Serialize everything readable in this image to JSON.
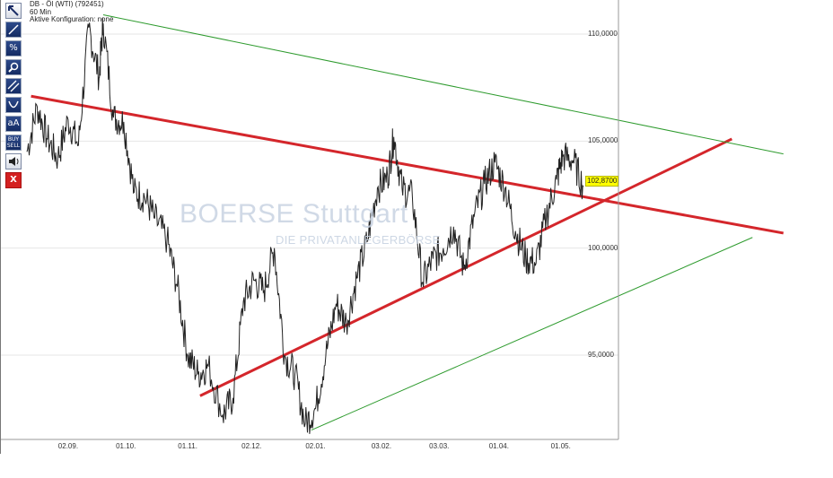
{
  "info": {
    "instrument": "DB - Öl (WTI) (792451)",
    "interval": "60 Min",
    "config": "Aktive Konfiguration: none"
  },
  "toolbar": {
    "tools": [
      {
        "name": "pointer-tool",
        "icon": "arrow-pointer-icon",
        "label": ""
      },
      {
        "name": "line-tool",
        "icon": "trendline-icon",
        "label": ""
      },
      {
        "name": "percent-tool",
        "icon": "percent-icon",
        "label": "%"
      },
      {
        "name": "zoom-tool",
        "icon": "magnifier-icon",
        "label": ""
      },
      {
        "name": "channel-tool",
        "icon": "parallel-lines-icon",
        "label": ""
      },
      {
        "name": "arc-tool",
        "icon": "arc-icon",
        "label": ""
      },
      {
        "name": "text-tool",
        "icon": "text-icon",
        "label": "aA"
      },
      {
        "name": "buysell-tool",
        "icon": "buy-sell-icon",
        "label_top": "BUY",
        "label_bottom": "SELL"
      },
      {
        "name": "sound-tool",
        "icon": "speaker-icon",
        "label": ""
      },
      {
        "name": "delete-tool",
        "icon": "close-icon",
        "label": "X"
      }
    ]
  },
  "watermark": {
    "logo": "BOERSE Stuttgart",
    "tagline": "DIE PRIVATANLEGERBÖRSE"
  },
  "price_label": "102,8700",
  "colors": {
    "price": "#222222",
    "support_resistance": "#d4262b",
    "channel": "#2e9b2e",
    "grid": "#e6e6e6",
    "price_label_bg": "#ffff00"
  },
  "chart_data": {
    "type": "line",
    "title": "",
    "xlabel": "",
    "ylabel": "",
    "x_ticks": [
      "02.09.",
      "01.10.",
      "01.11.",
      "02.12.",
      "02.01.",
      "03.02.",
      "03.03.",
      "01.04.",
      "01.05."
    ],
    "y_ticks": [
      "110,0000",
      "105,0000",
      "100,0000",
      "95,0000"
    ],
    "y_tick_values": [
      110,
      105,
      100,
      95
    ],
    "ylim": [
      91.2,
      111.5
    ],
    "x_range_days": [
      0,
      270
    ],
    "last_price": 102.87,
    "series": [
      {
        "points": [
          [
            0,
            104.5
          ],
          [
            5,
            106.6
          ],
          [
            10,
            105.1
          ],
          [
            15,
            104.2
          ],
          [
            20,
            106.0
          ],
          [
            25,
            104.8
          ],
          [
            30,
            110.3
          ],
          [
            35,
            108.0
          ],
          [
            37,
            110.5
          ],
          [
            42,
            106.1
          ],
          [
            47,
            105.9
          ],
          [
            52,
            102.6
          ],
          [
            57,
            102.4
          ],
          [
            62,
            101.4
          ],
          [
            68,
            100.4
          ],
          [
            73,
            98.2
          ],
          [
            78,
            95.0
          ],
          [
            83,
            94.1
          ],
          [
            88,
            94.5
          ],
          [
            95,
            92.2
          ],
          [
            100,
            93.0
          ],
          [
            105,
            97.5
          ],
          [
            110,
            98.5
          ],
          [
            115,
            98.0
          ],
          [
            120,
            100.0
          ],
          [
            125,
            95.0
          ],
          [
            130,
            94.1
          ],
          [
            135,
            91.8
          ],
          [
            140,
            92.5
          ],
          [
            145,
            95.0
          ],
          [
            150,
            97.4
          ],
          [
            155,
            96.5
          ],
          [
            160,
            98.6
          ],
          [
            165,
            100.3
          ],
          [
            170,
            102.8
          ],
          [
            175,
            103.3
          ],
          [
            178,
            105.2
          ],
          [
            182,
            102.8
          ],
          [
            187,
            102.4
          ],
          [
            192,
            98.4
          ],
          [
            197,
            99.5
          ],
          [
            202,
            100.0
          ],
          [
            207,
            101.0
          ],
          [
            212,
            99.0
          ],
          [
            217,
            101.5
          ],
          [
            222,
            103.0
          ],
          [
            227,
            104.0
          ],
          [
            232,
            102.8
          ],
          [
            237,
            100.8
          ],
          [
            242,
            99.5
          ],
          [
            247,
            99.3
          ],
          [
            252,
            101.5
          ],
          [
            257,
            103.2
          ],
          [
            260,
            104.3
          ],
          [
            265,
            104.1
          ],
          [
            270,
            102.87
          ]
        ]
      }
    ],
    "trendlines": [
      {
        "kind": "resistance",
        "style": "red-thick",
        "points": [
          [
            2,
            107.1
          ],
          [
            367,
            100.7
          ]
        ]
      },
      {
        "kind": "support",
        "style": "red-thick",
        "points": [
          [
            84,
            93.1
          ],
          [
            342,
            105.1
          ]
        ]
      },
      {
        "kind": "channel-upper",
        "style": "green-thin",
        "points": [
          [
            37,
            110.9
          ],
          [
            367,
            104.4
          ]
        ]
      },
      {
        "kind": "channel-lower",
        "style": "green-thin",
        "points": [
          [
            138,
            91.5
          ],
          [
            352,
            100.5
          ]
        ]
      }
    ],
    "grid": true,
    "legend": "none"
  }
}
